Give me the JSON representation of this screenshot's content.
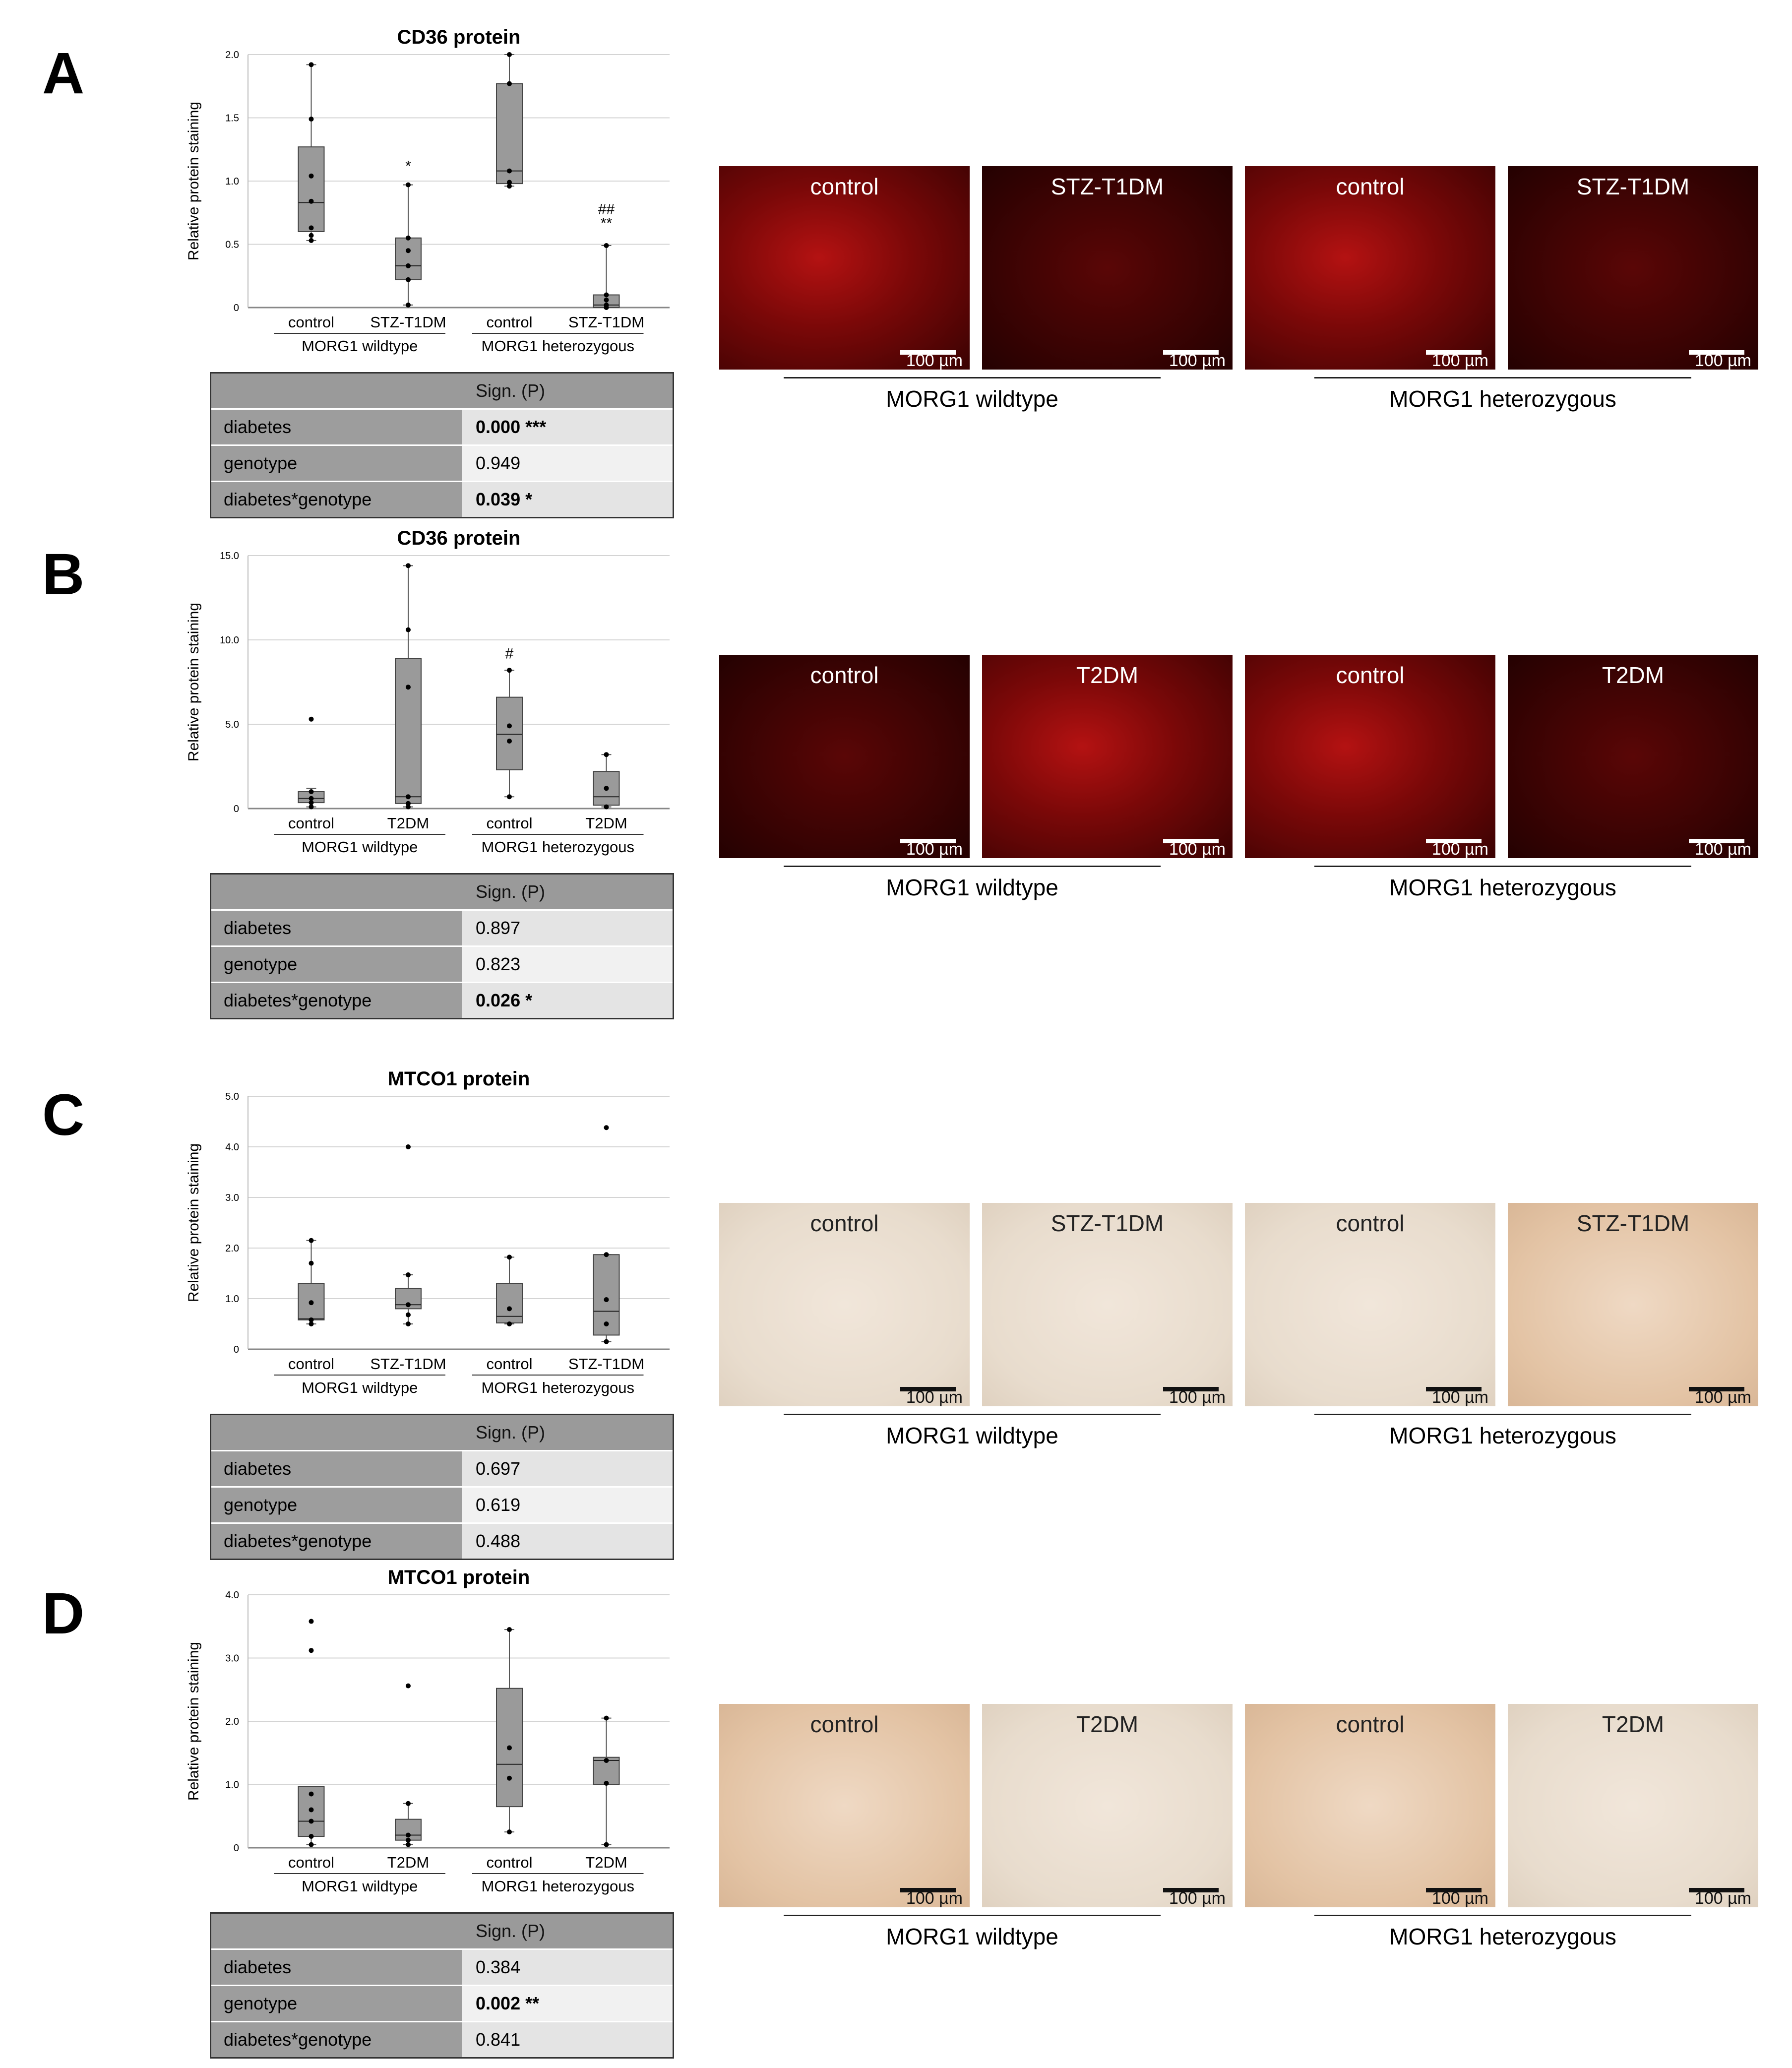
{
  "colors": {
    "box": "#9a9a9a",
    "red_stain": "#8a0a0a",
    "ihc_bg": "#e9d6c3"
  },
  "panels": [
    {
      "letter": "A",
      "chart_data": {
        "type": "box",
        "title": "CD36 protein",
        "ylabel": "Relative protein staining",
        "ylim": [
          0,
          2.0
        ],
        "yticks": [
          "0",
          "0.5",
          "1.0",
          "1.5",
          "2.0"
        ],
        "categories": [
          "control",
          "STZ-T1DM",
          "control",
          "STZ-T1DM"
        ],
        "groups": [
          "MORG1 wildtype",
          "MORG1 heterozygous"
        ],
        "boxes": [
          {
            "q1": 0.6,
            "median": 0.83,
            "q3": 1.27,
            "min": 0.53,
            "max": 1.92,
            "points": [
              0.53,
              0.57,
              0.63,
              0.84,
              1.04,
              1.49,
              1.92
            ]
          },
          {
            "q1": 0.22,
            "median": 0.33,
            "q3": 0.55,
            "min": 0.02,
            "max": 0.97,
            "points": [
              0.02,
              0.22,
              0.33,
              0.45,
              0.55,
              0.97
            ]
          },
          {
            "q1": 0.98,
            "median": 1.08,
            "q3": 1.77,
            "min": 0.96,
            "max": 2.0,
            "points": [
              0.96,
              0.99,
              1.08,
              1.77,
              2.0
            ]
          },
          {
            "q1": 0.0,
            "median": 0.02,
            "q3": 0.1,
            "min": 0.0,
            "max": 0.49,
            "points": [
              0.0,
              0.02,
              0.06,
              0.1,
              0.49
            ]
          }
        ],
        "annotations": [
          {
            "group": 1,
            "y": 1.08,
            "text": "*"
          },
          {
            "group": 3,
            "y": 0.63,
            "text": "**"
          },
          {
            "group": 3,
            "y": 0.74,
            "text": "##"
          }
        ]
      },
      "stats": {
        "header": "Sign. (P)",
        "rows": [
          {
            "label": "diabetes",
            "value": "0.000 ***",
            "bold": true
          },
          {
            "label": "genotype",
            "value": "0.949",
            "bold": false
          },
          {
            "label": "diabetes*genotype",
            "value": "0.039 *",
            "bold": true
          }
        ]
      },
      "images": {
        "kind": "fluor",
        "captions": [
          "control",
          "STZ-T1DM",
          "control",
          "STZ-T1DM"
        ],
        "scale": "100 µm"
      },
      "group_labels": [
        "MORG1 wildtype",
        "MORG1 heterozygous"
      ]
    },
    {
      "letter": "B",
      "chart_data": {
        "type": "box",
        "title": "CD36 protein",
        "ylabel": "Relative protein staining",
        "ylim": [
          0,
          15.0
        ],
        "yticks": [
          "0",
          "5.0",
          "10.0",
          "15.0"
        ],
        "categories": [
          "control",
          "T2DM",
          "control",
          "T2DM"
        ],
        "groups": [
          "MORG1 wildtype",
          "MORG1 heterozygous"
        ],
        "boxes": [
          {
            "q1": 0.35,
            "median": 0.6,
            "q3": 1.0,
            "min": 0.1,
            "max": 1.2,
            "points": [
              0.1,
              0.35,
              0.6,
              1.0,
              5.3
            ]
          },
          {
            "q1": 0.3,
            "median": 0.7,
            "q3": 8.9,
            "min": 0.1,
            "max": 14.4,
            "points": [
              0.1,
              0.3,
              0.7,
              7.2,
              10.6,
              14.4
            ]
          },
          {
            "q1": 2.3,
            "median": 4.4,
            "q3": 6.6,
            "min": 0.7,
            "max": 8.2,
            "points": [
              0.7,
              4.0,
              4.9,
              8.2
            ]
          },
          {
            "q1": 0.2,
            "median": 0.7,
            "q3": 2.2,
            "min": 0.1,
            "max": 3.2,
            "points": [
              0.1,
              1.2,
              3.2
            ]
          }
        ],
        "annotations": [
          {
            "group": 2,
            "y": 8.9,
            "text": "#"
          }
        ]
      },
      "stats": {
        "header": "Sign. (P)",
        "rows": [
          {
            "label": "diabetes",
            "value": "0.897",
            "bold": false
          },
          {
            "label": "genotype",
            "value": "0.823",
            "bold": false
          },
          {
            "label": "diabetes*genotype",
            "value": "0.026 *",
            "bold": true
          }
        ]
      },
      "images": {
        "kind": "fluor",
        "captions": [
          "control",
          "T2DM",
          "control",
          "T2DM"
        ],
        "scale": "100 µm"
      },
      "group_labels": [
        "MORG1 wildtype",
        "MORG1 heterozygous"
      ]
    },
    {
      "letter": "C",
      "chart_data": {
        "type": "box",
        "title": "MTCO1 protein",
        "ylabel": "Relative protein staining",
        "ylim": [
          0,
          5.0
        ],
        "yticks": [
          "0",
          "1.0",
          "2.0",
          "3.0",
          "4.0",
          "5.0"
        ],
        "categories": [
          "control",
          "STZ-T1DM",
          "control",
          "STZ-T1DM"
        ],
        "groups": [
          "MORG1 wildtype",
          "MORG1 heterozygous"
        ],
        "boxes": [
          {
            "q1": 0.58,
            "median": 0.6,
            "q3": 1.3,
            "min": 0.5,
            "max": 2.15,
            "points": [
              0.5,
              0.58,
              0.92,
              1.7,
              2.15
            ]
          },
          {
            "q1": 0.8,
            "median": 0.88,
            "q3": 1.2,
            "min": 0.5,
            "max": 1.47,
            "points": [
              0.5,
              0.68,
              0.88,
              1.47,
              4.0
            ]
          },
          {
            "q1": 0.52,
            "median": 0.65,
            "q3": 1.3,
            "min": 0.5,
            "max": 1.82,
            "points": [
              0.5,
              0.8,
              1.82
            ]
          },
          {
            "q1": 0.28,
            "median": 0.75,
            "q3": 1.87,
            "min": 0.15,
            "max": 1.87,
            "points": [
              0.15,
              0.5,
              0.98,
              1.87,
              4.38
            ]
          }
        ],
        "annotations": []
      },
      "stats": {
        "header": "Sign. (P)",
        "rows": [
          {
            "label": "diabetes",
            "value": "0.697",
            "bold": false
          },
          {
            "label": "genotype",
            "value": "0.619",
            "bold": false
          },
          {
            "label": "diabetes*genotype",
            "value": "0.488",
            "bold": false
          }
        ]
      },
      "images": {
        "kind": "ihc",
        "captions": [
          "control",
          "STZ-T1DM",
          "control",
          "STZ-T1DM"
        ],
        "scale": "100 µm"
      },
      "group_labels": [
        "MORG1 wildtype",
        "MORG1 heterozygous"
      ]
    },
    {
      "letter": "D",
      "chart_data": {
        "type": "box",
        "title": "MTCO1 protein",
        "ylabel": "Relative protein staining",
        "ylim": [
          0,
          4.0
        ],
        "yticks": [
          "0",
          "1.0",
          "2.0",
          "3.0",
          "4.0"
        ],
        "categories": [
          "control",
          "T2DM",
          "control",
          "T2DM"
        ],
        "groups": [
          "MORG1 wildtype",
          "MORG1 heterozygous"
        ],
        "boxes": [
          {
            "q1": 0.18,
            "median": 0.42,
            "q3": 0.97,
            "min": 0.05,
            "max": 0.97,
            "points": [
              0.05,
              0.18,
              0.42,
              0.6,
              0.85,
              3.12,
              3.58
            ]
          },
          {
            "q1": 0.12,
            "median": 0.2,
            "q3": 0.45,
            "min": 0.05,
            "max": 0.7,
            "points": [
              0.05,
              0.12,
              0.2,
              0.7,
              2.56
            ]
          },
          {
            "q1": 0.65,
            "median": 1.32,
            "q3": 2.52,
            "min": 0.25,
            "max": 3.45,
            "points": [
              0.25,
              1.1,
              1.58,
              3.45
            ]
          },
          {
            "q1": 1.0,
            "median": 1.38,
            "q3": 1.43,
            "min": 0.05,
            "max": 2.05,
            "points": [
              0.05,
              1.02,
              1.38,
              2.05
            ]
          }
        ],
        "annotations": []
      },
      "stats": {
        "header": "Sign. (P)",
        "rows": [
          {
            "label": "diabetes",
            "value": "0.384",
            "bold": false
          },
          {
            "label": "genotype",
            "value": "0.002 **",
            "bold": true
          },
          {
            "label": "diabetes*genotype",
            "value": "0.841",
            "bold": false
          }
        ]
      },
      "images": {
        "kind": "ihc",
        "captions": [
          "control",
          "T2DM",
          "control",
          "T2DM"
        ],
        "scale": "100 µm"
      },
      "group_labels": [
        "MORG1 wildtype",
        "MORG1 heterozygous"
      ]
    }
  ]
}
